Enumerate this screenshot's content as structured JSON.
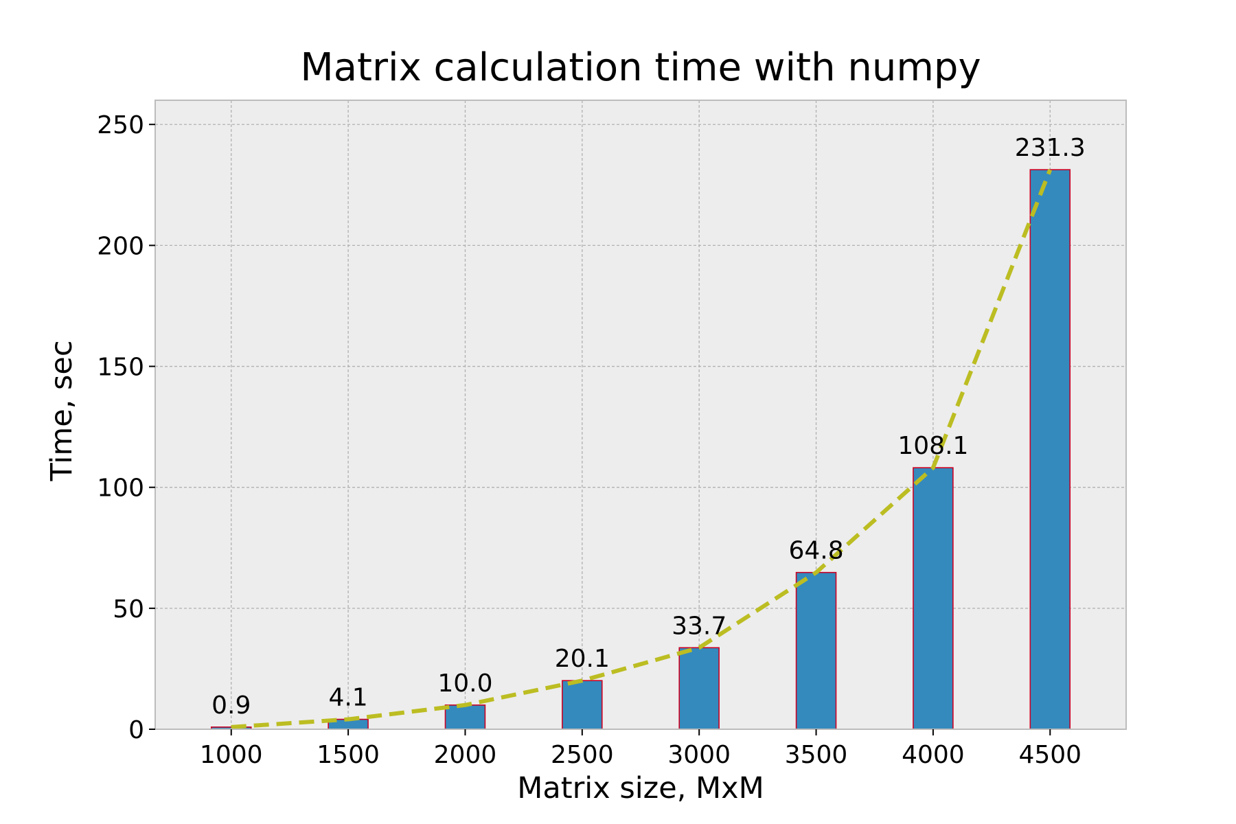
{
  "chart_data": {
    "type": "bar",
    "title": "Matrix calculation time with numpy",
    "xlabel": "Matrix size, MxM",
    "ylabel": "Time, sec",
    "categories": [
      "1000",
      "1500",
      "2000",
      "2500",
      "3000",
      "3500",
      "4000",
      "4500"
    ],
    "x": [
      1000,
      1500,
      2000,
      2500,
      3000,
      3500,
      4000,
      4500
    ],
    "series": [
      {
        "type": "bar",
        "values": [
          0.9,
          4.1,
          10.0,
          20.1,
          33.7,
          64.8,
          108.1,
          231.3
        ],
        "data_labels": [
          "0.9",
          "4.1",
          "10.0",
          "20.1",
          "33.7",
          "64.8",
          "108.1",
          "231.3"
        ],
        "color": "#348ABD",
        "edge_color": "#CC0022"
      },
      {
        "type": "line",
        "style": "dashed",
        "values": [
          0.9,
          4.1,
          10.0,
          20.1,
          33.7,
          64.8,
          108.1,
          231.3
        ],
        "color": "#BCBD22"
      }
    ],
    "ylim": [
      0,
      250
    ],
    "yticks": [
      0,
      50,
      100,
      150,
      200,
      250
    ],
    "ytick_labels": [
      "0",
      "50",
      "100",
      "150",
      "200",
      "250"
    ],
    "xlim": [
      675,
      4825
    ],
    "grid": true,
    "grid_style": "dashed",
    "background_color": "#EDEDED",
    "legend": "none"
  }
}
